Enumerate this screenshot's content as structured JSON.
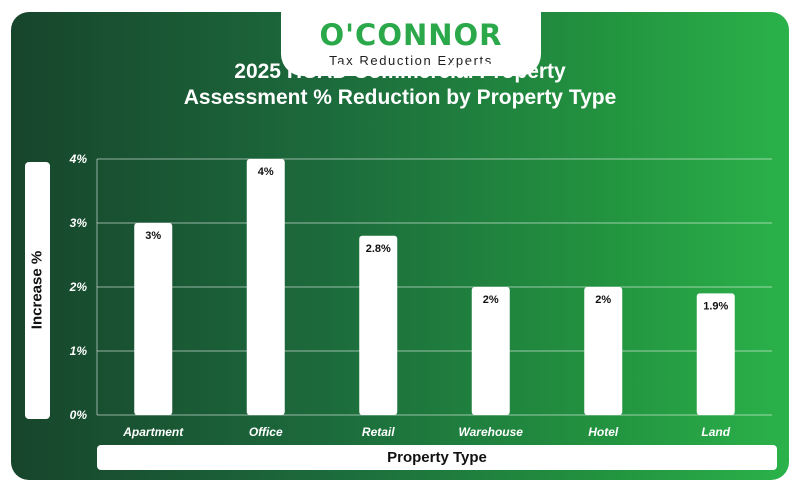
{
  "brand": {
    "name": "O'CONNOR",
    "tagline": "Tax Reduction Experts"
  },
  "colors": {
    "background_start": "#17452c",
    "background_end": "#2bb24a",
    "bar": "#ffffff",
    "brand_green": "#2aa84a"
  },
  "chart_data": {
    "type": "bar",
    "title_line1": "2025 HCAD Commercial Property",
    "title_line2": "Assessment % Reduction by Property Type",
    "xlabel": "Property Type",
    "ylabel": "Increase %",
    "categories": [
      "Apartment",
      "Office",
      "Retail",
      "Warehouse",
      "Hotel",
      "Land"
    ],
    "values": [
      3,
      4,
      2.8,
      2,
      2,
      1.9
    ],
    "data_labels": [
      "3%",
      "4%",
      "2.8%",
      "2%",
      "2%",
      "1.9%"
    ],
    "ylim": [
      0,
      4
    ],
    "yticks": [
      0,
      1,
      2,
      3,
      4
    ],
    "ytick_labels": [
      "0%",
      "1%",
      "2%",
      "3%",
      "4%"
    ],
    "grid": true,
    "legend": "none"
  }
}
